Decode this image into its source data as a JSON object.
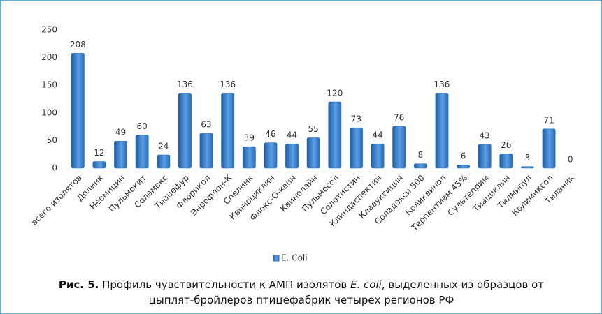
{
  "chart_data": {
    "type": "bar",
    "categories": [
      "всего изолятов",
      "Долинк",
      "Неомицин",
      "Пульмокит",
      "Соламокс",
      "Тиоцефур",
      "Флорикол",
      "Энрофлон-К",
      "Спелинк",
      "Квиноциклин",
      "Флокс-О-квин",
      "Квинолайн",
      "Пульмосол",
      "Солотистин",
      "Клиндаспектин",
      "Клавуксицин",
      "Соладокси 500",
      "Коликвинол",
      "Терпентиам 45%",
      "Сультеприм",
      "Тиациклин",
      "Тилмипул",
      "Колимиксол",
      "Тиланик"
    ],
    "series": [
      {
        "name": "E. Coli",
        "color": "#2f74c0",
        "values": [
          208,
          12,
          49,
          60,
          24,
          136,
          63,
          136,
          39,
          46,
          44,
          55,
          120,
          73,
          44,
          76,
          8,
          136,
          6,
          43,
          26,
          3,
          71,
          0
        ]
      }
    ],
    "ylim": [
      0,
      250
    ],
    "yticks": [
      0,
      50,
      100,
      150,
      200,
      250
    ],
    "grid": false,
    "legend": "bottom"
  },
  "caption": {
    "label": "Рис. 5.",
    "text_1": " Профиль чувствительности к АМП изолятов ",
    "italic": "E. coli",
    "text_2": ", выделенных из образцов от цыплят-бройлеров птицефабрик четырех регионов РФ"
  }
}
